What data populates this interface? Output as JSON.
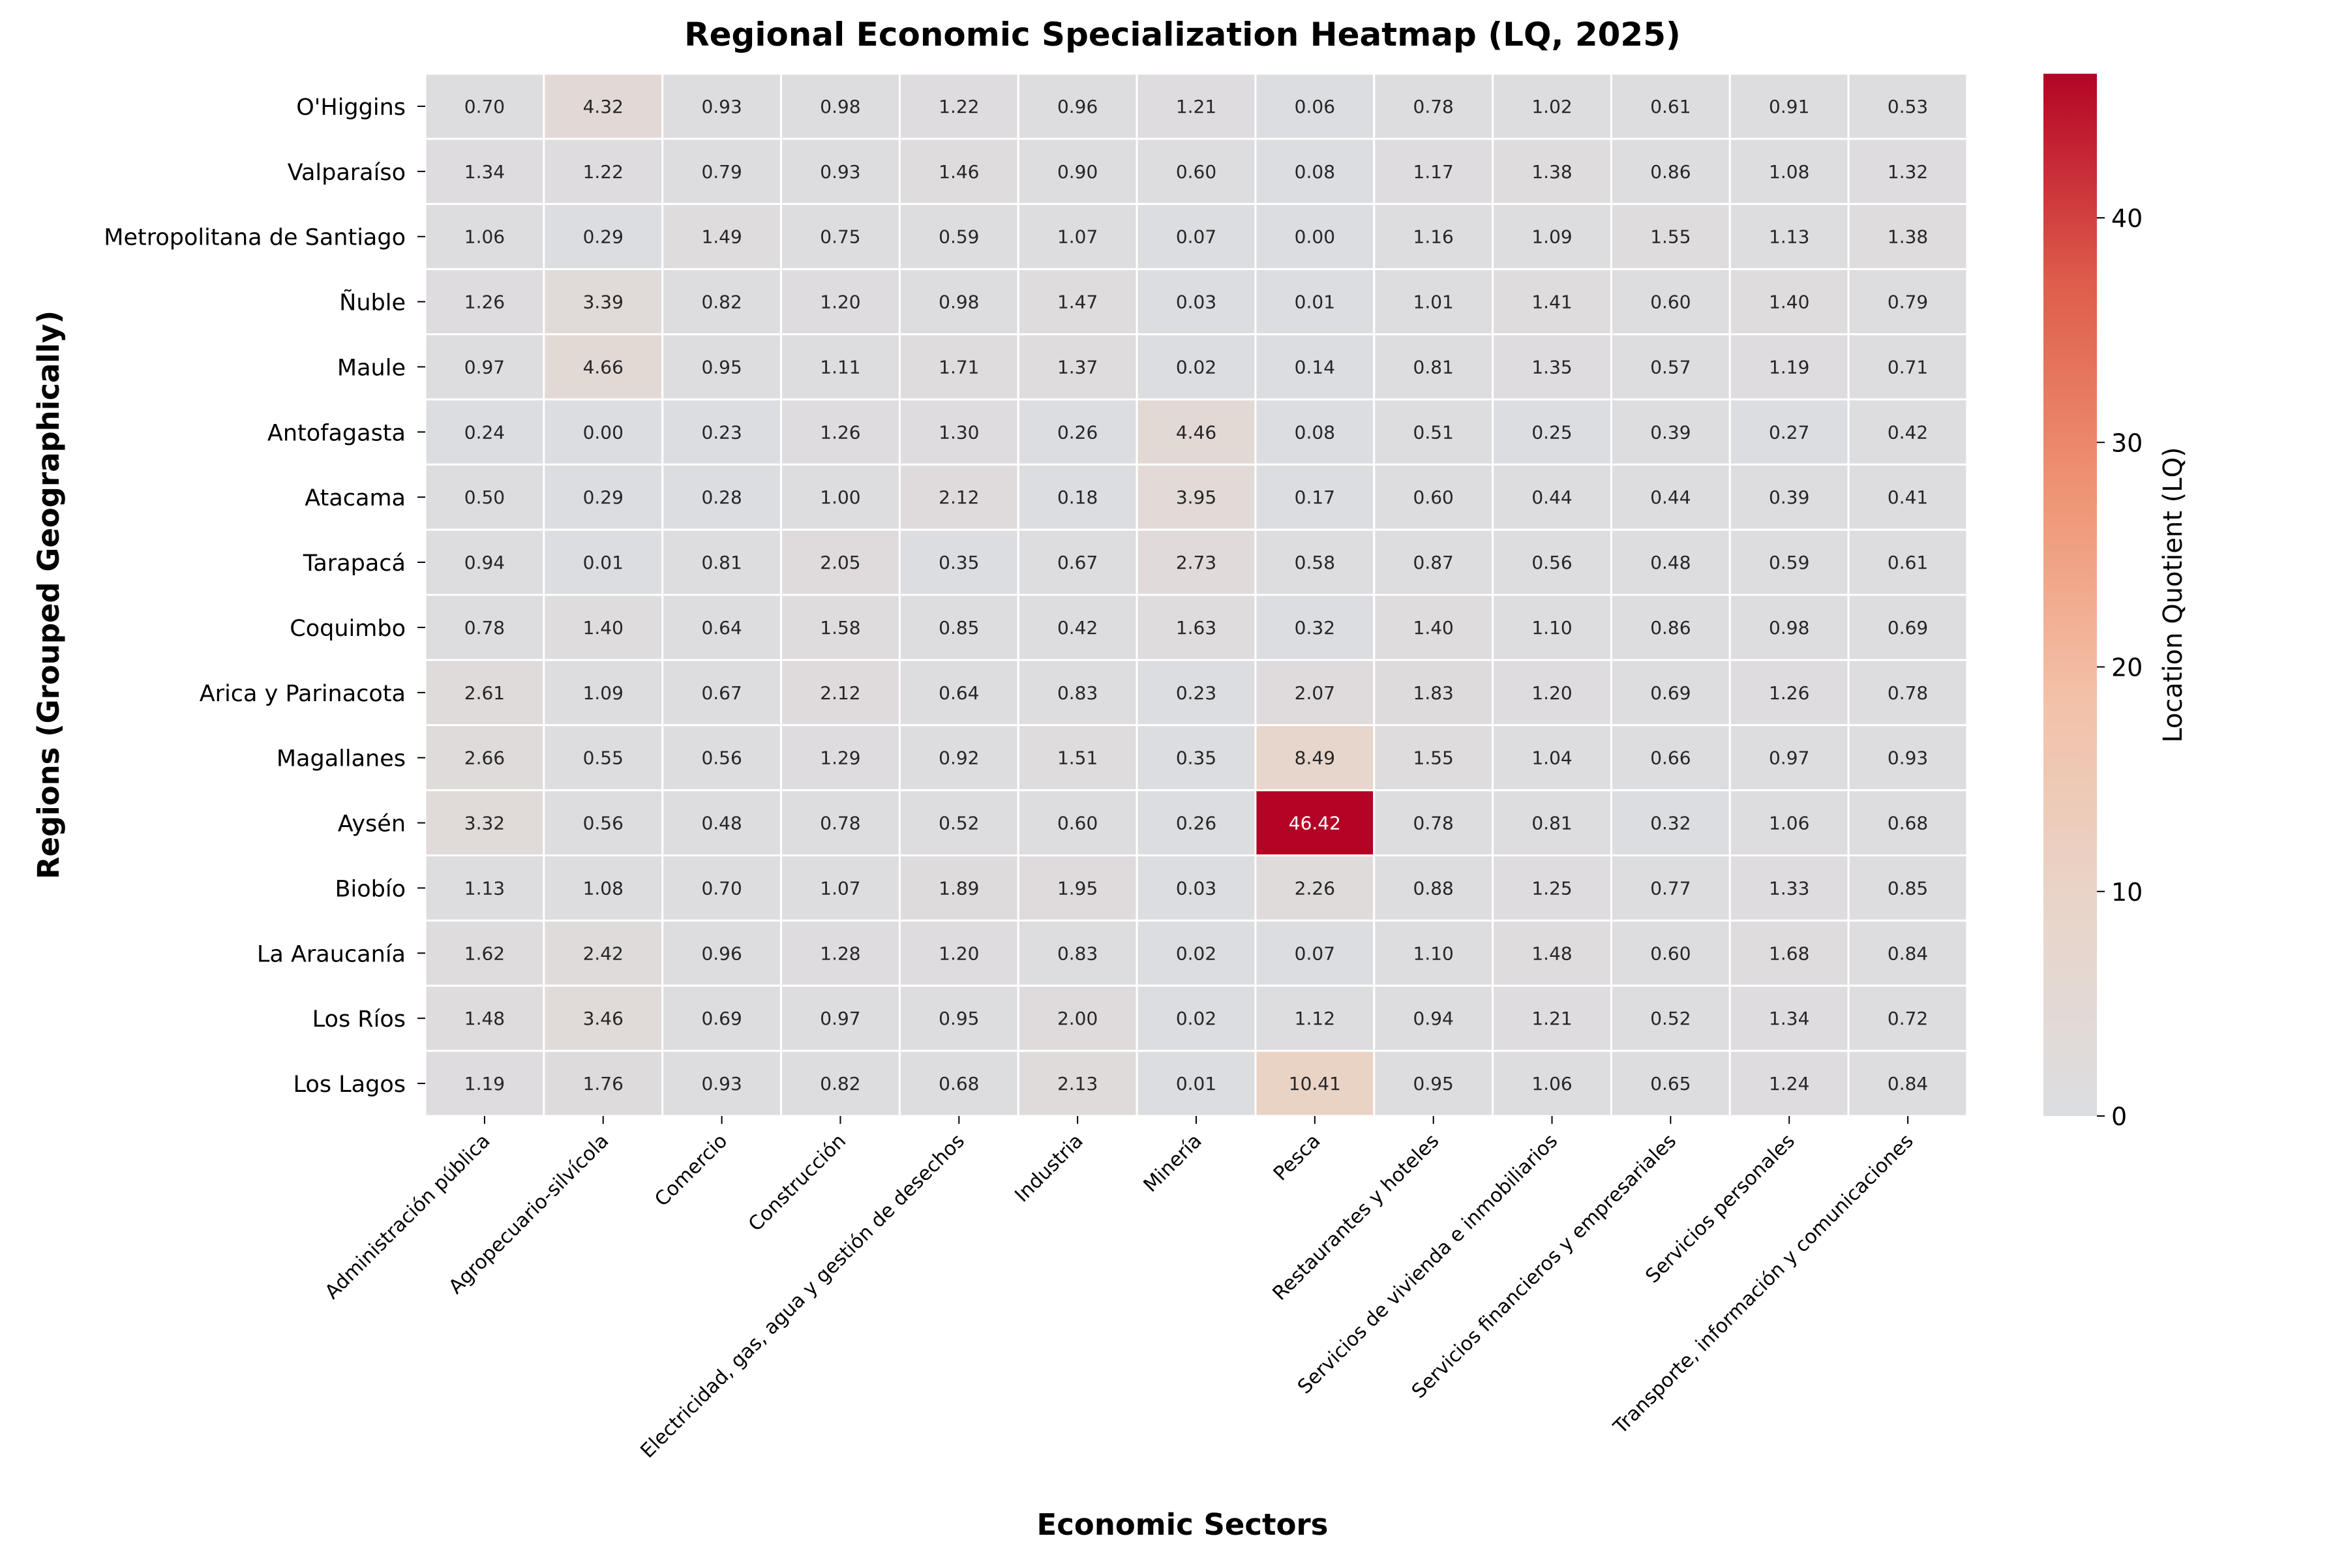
{
  "chart_data": {
    "type": "heatmap",
    "title": "Regional Economic Specialization Heatmap (LQ, 2025)",
    "xlabel": "Economic Sectors",
    "ylabel": "Regions (Grouped Geographically)",
    "colorbar_label": "Location Quotient (LQ)",
    "colorbar_ticks": [
      "0",
      "10",
      "20",
      "30",
      "40"
    ],
    "colorbar_range": [
      0,
      46.42
    ],
    "colormap": "coolwarm",
    "colormap_stops": [
      "#dcdde1",
      "#e8d5c9",
      "#f3c1a8",
      "#ef9474",
      "#de5d4b",
      "#b40426"
    ],
    "grid": true,
    "legend": "colorbar-right",
    "x_categories": [
      "Administración pública",
      "Agropecuario-silvícola",
      "Comercio",
      "Construcción",
      "Electricidad, gas, agua y gestión de desechos",
      "Industria",
      "Minería",
      "Pesca",
      "Restaurantes y hoteles",
      "Servicios de vivienda e inmobiliarios",
      "Servicios financieros y empresariales",
      "Servicios personales",
      "Transporte, información y comunicaciones"
    ],
    "y_categories": [
      "O'Higgins",
      "Valparaíso",
      "Metropolitana de Santiago",
      "Ñuble",
      "Maule",
      "Antofagasta",
      "Atacama",
      "Tarapacá",
      "Coquimbo",
      "Arica y Parinacota",
      "Magallanes",
      "Aysén",
      "Biobío",
      "La Araucanía",
      "Los Ríos",
      "Los Lagos"
    ],
    "values": [
      [
        "0.70",
        "4.32",
        "0.93",
        "0.98",
        "1.22",
        "0.96",
        "1.21",
        "0.06",
        "0.78",
        "1.02",
        "0.61",
        "0.91",
        "0.53"
      ],
      [
        "1.34",
        "1.22",
        "0.79",
        "0.93",
        "1.46",
        "0.90",
        "0.60",
        "0.08",
        "1.17",
        "1.38",
        "0.86",
        "1.08",
        "1.32"
      ],
      [
        "1.06",
        "0.29",
        "1.49",
        "0.75",
        "0.59",
        "1.07",
        "0.07",
        "0.00",
        "1.16",
        "1.09",
        "1.55",
        "1.13",
        "1.38"
      ],
      [
        "1.26",
        "3.39",
        "0.82",
        "1.20",
        "0.98",
        "1.47",
        "0.03",
        "0.01",
        "1.01",
        "1.41",
        "0.60",
        "1.40",
        "0.79"
      ],
      [
        "0.97",
        "4.66",
        "0.95",
        "1.11",
        "1.71",
        "1.37",
        "0.02",
        "0.14",
        "0.81",
        "1.35",
        "0.57",
        "1.19",
        "0.71"
      ],
      [
        "0.24",
        "0.00",
        "0.23",
        "1.26",
        "1.30",
        "0.26",
        "4.46",
        "0.08",
        "0.51",
        "0.25",
        "0.39",
        "0.27",
        "0.42"
      ],
      [
        "0.50",
        "0.29",
        "0.28",
        "1.00",
        "2.12",
        "0.18",
        "3.95",
        "0.17",
        "0.60",
        "0.44",
        "0.44",
        "0.39",
        "0.41"
      ],
      [
        "0.94",
        "0.01",
        "0.81",
        "2.05",
        "0.35",
        "0.67",
        "2.73",
        "0.58",
        "0.87",
        "0.56",
        "0.48",
        "0.59",
        "0.61"
      ],
      [
        "0.78",
        "1.40",
        "0.64",
        "1.58",
        "0.85",
        "0.42",
        "1.63",
        "0.32",
        "1.40",
        "1.10",
        "0.86",
        "0.98",
        "0.69"
      ],
      [
        "2.61",
        "1.09",
        "0.67",
        "2.12",
        "0.64",
        "0.83",
        "0.23",
        "2.07",
        "1.83",
        "1.20",
        "0.69",
        "1.26",
        "0.78"
      ],
      [
        "2.66",
        "0.55",
        "0.56",
        "1.29",
        "0.92",
        "1.51",
        "0.35",
        "8.49",
        "1.55",
        "1.04",
        "0.66",
        "0.97",
        "0.93"
      ],
      [
        "3.32",
        "0.56",
        "0.48",
        "0.78",
        "0.52",
        "0.60",
        "0.26",
        "46.42",
        "0.78",
        "0.81",
        "0.32",
        "1.06",
        "0.68"
      ],
      [
        "1.13",
        "1.08",
        "0.70",
        "1.07",
        "1.89",
        "1.95",
        "0.03",
        "2.26",
        "0.88",
        "1.25",
        "0.77",
        "1.33",
        "0.85"
      ],
      [
        "1.62",
        "2.42",
        "0.96",
        "1.28",
        "1.20",
        "0.83",
        "0.02",
        "0.07",
        "1.10",
        "1.48",
        "0.60",
        "1.68",
        "0.84"
      ],
      [
        "1.48",
        "3.46",
        "0.69",
        "0.97",
        "0.95",
        "2.00",
        "0.02",
        "1.12",
        "0.94",
        "1.21",
        "0.52",
        "1.34",
        "0.72"
      ],
      [
        "1.19",
        "1.76",
        "0.93",
        "0.82",
        "0.68",
        "2.13",
        "0.01",
        "10.41",
        "0.95",
        "1.06",
        "0.65",
        "1.24",
        "0.84"
      ]
    ]
  }
}
